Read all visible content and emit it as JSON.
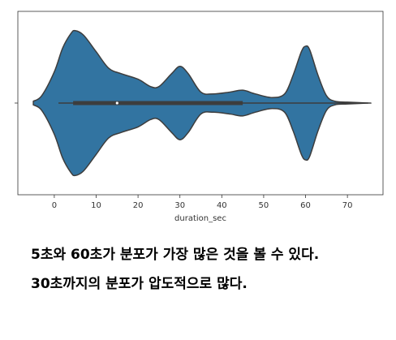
{
  "chart_data": {
    "type": "violin",
    "x_label": "duration_sec",
    "xlim": [
      -8.7,
      78.5
    ],
    "xticks": [
      0,
      10,
      20,
      30,
      40,
      50,
      60,
      70
    ],
    "ylim": [
      -0.5,
      0.5
    ],
    "yticks": [
      0
    ],
    "color": "#3274a1",
    "edge_color": "#3d3d3d",
    "violin": {
      "x": [
        -5,
        -3,
        0,
        2,
        4,
        5,
        7,
        10,
        13,
        16,
        20,
        23,
        25,
        28,
        30,
        32,
        35,
        38,
        42,
        45,
        48,
        52,
        55,
        57,
        59,
        60,
        61,
        63,
        65,
        67,
        70,
        75
      ],
      "half_width": [
        0.01,
        0.04,
        0.17,
        0.3,
        0.38,
        0.395,
        0.37,
        0.28,
        0.19,
        0.16,
        0.13,
        0.09,
        0.09,
        0.16,
        0.2,
        0.16,
        0.06,
        0.05,
        0.06,
        0.07,
        0.05,
        0.03,
        0.05,
        0.15,
        0.28,
        0.31,
        0.29,
        0.15,
        0.04,
        0.01,
        0.005,
        0
      ]
    },
    "box": {
      "whisker_low": 1,
      "q1": 4.5,
      "median": 15,
      "q3": 45,
      "whisker_high": 75
    }
  },
  "notes": [
    "5초와 60초가 분포가 가장 많은 것을 볼 수 있다.",
    "30초까지의 분포가 압도적으로 많다."
  ]
}
